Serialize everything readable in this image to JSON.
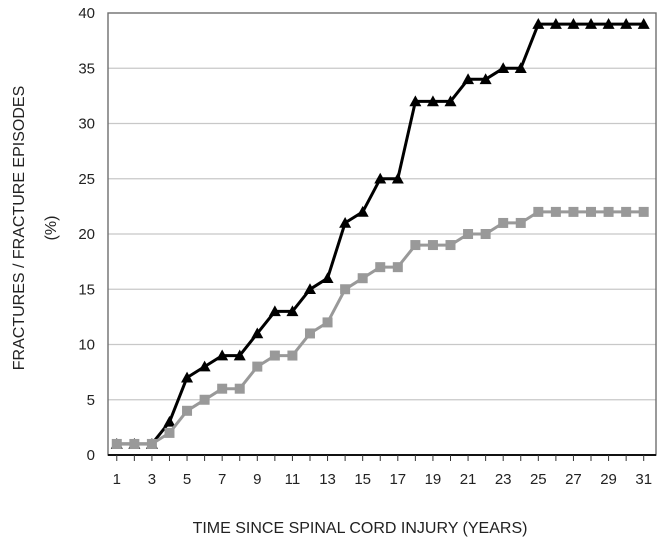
{
  "chart_data": {
    "type": "line",
    "title": "",
    "xlabel": "TIME SINCE SPINAL CORD INJURY (YEARS)",
    "ylabel_line1": "FRACTURES / FRACTURE EPISODES",
    "ylabel_line2": "(%)",
    "x": [
      1,
      2,
      3,
      4,
      5,
      6,
      7,
      8,
      9,
      10,
      11,
      12,
      13,
      14,
      15,
      16,
      17,
      18,
      19,
      20,
      21,
      22,
      23,
      24,
      25,
      26,
      27,
      28,
      29,
      30,
      31
    ],
    "xlim": [
      0.5,
      31.7
    ],
    "ylim": [
      0,
      40
    ],
    "x_ticks": [
      1,
      3,
      5,
      7,
      9,
      11,
      13,
      15,
      17,
      19,
      21,
      23,
      25,
      27,
      29,
      31
    ],
    "y_ticks": [
      0,
      5,
      10,
      15,
      20,
      25,
      30,
      35,
      40
    ],
    "grid": "horizontal",
    "legend": "none",
    "series": [
      {
        "marker": "triangle",
        "color": "#000000",
        "values": [
          1,
          1,
          1,
          3,
          7,
          8,
          9,
          9,
          11,
          13,
          13,
          15,
          16,
          21,
          22,
          25,
          25,
          32,
          32,
          32,
          34,
          34,
          35,
          35,
          39,
          39,
          39,
          39,
          39,
          39,
          39
        ]
      },
      {
        "marker": "square",
        "color": "#999999",
        "values": [
          1,
          1,
          1,
          2,
          4,
          5,
          6,
          6,
          8,
          9,
          9,
          11,
          12,
          15,
          16,
          17,
          17,
          19,
          19,
          19,
          20,
          20,
          21,
          21,
          22,
          22,
          22,
          22,
          22,
          22,
          22
        ]
      }
    ]
  }
}
